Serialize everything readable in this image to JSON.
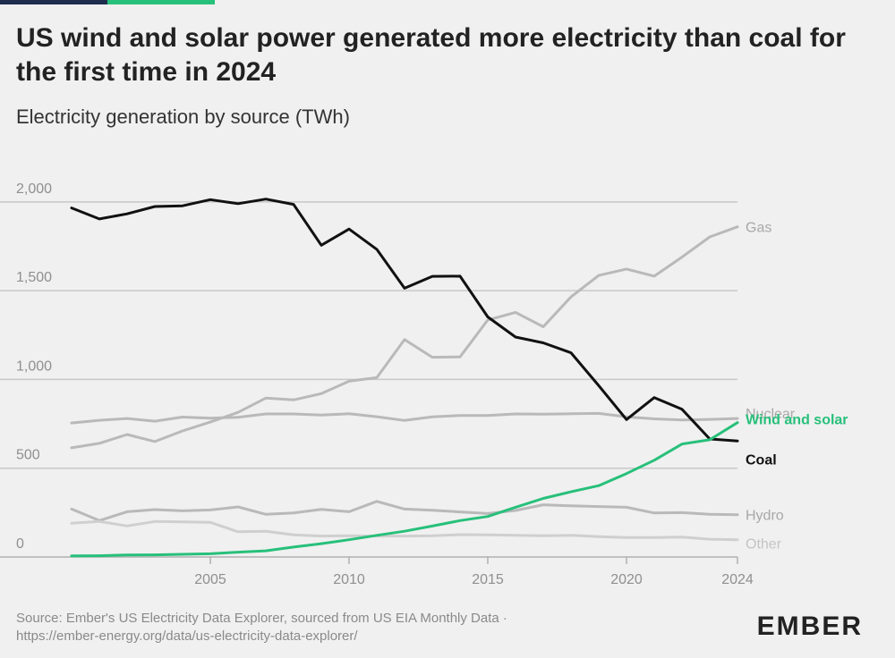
{
  "header": {
    "title": "US wind and solar power generated more electricity than coal for the first time in 2024",
    "subtitle": "Electricity generation by source (TWh)"
  },
  "footer": {
    "source_line1": "Source: Ember's US Electricity Data Explorer, sourced from US EIA Monthly Data ·",
    "source_line2": "https://ember-energy.org/data/us-electricity-data-explorer/",
    "logo": "EMBER"
  },
  "colors": {
    "background": "#f0f0f0",
    "grid": "#c8c8c8",
    "gray_series": "#b9b9b9",
    "other_series": "#cfcfcf",
    "coal": "#111111",
    "wind_solar": "#27c07a",
    "bar_navy": "#1f2d4d",
    "bar_green": "#27c07a"
  },
  "chart_data": {
    "type": "line",
    "title": "US wind and solar power generated more electricity than coal for the first time in 2024",
    "subtitle": "Electricity generation by source (TWh)",
    "x": [
      2000,
      2001,
      2002,
      2003,
      2004,
      2005,
      2006,
      2007,
      2008,
      2009,
      2010,
      2011,
      2012,
      2013,
      2014,
      2015,
      2016,
      2017,
      2018,
      2019,
      2020,
      2021,
      2022,
      2023,
      2024
    ],
    "x_ticks": [
      2005,
      2010,
      2015,
      2020,
      2024
    ],
    "x_tick_labels": [
      "2005",
      "2010",
      "2015",
      "2020",
      "2024"
    ],
    "y_ticks": [
      0,
      500,
      1000,
      1500,
      2000
    ],
    "y_tick_labels": [
      "0",
      "500",
      "1,000",
      "1,500",
      "2,000"
    ],
    "xlim": [
      2000,
      2024
    ],
    "ylim": [
      0,
      2050
    ],
    "grid": true,
    "legend": "direct-labels-right",
    "series": [
      {
        "name": "Gas",
        "color": "#b9b9b9",
        "width": 3,
        "values": [
          615,
          640,
          690,
          650,
          710,
          760,
          815,
          895,
          885,
          920,
          990,
          1010,
          1225,
          1125,
          1127,
          1335,
          1378,
          1297,
          1465,
          1586,
          1622,
          1582,
          1689,
          1803,
          1860
        ]
      },
      {
        "name": "Nuclear",
        "color": "#b9b9b9",
        "width": 3,
        "values": [
          755,
          770,
          780,
          765,
          788,
          782,
          787,
          806,
          806,
          799,
          807,
          790,
          769,
          789,
          797,
          797,
          806,
          805,
          807,
          809,
          789,
          778,
          772,
          775,
          780
        ]
      },
      {
        "name": "Hydro",
        "color": "#b9b9b9",
        "width": 3,
        "values": [
          270,
          205,
          255,
          267,
          260,
          265,
          282,
          240,
          248,
          268,
          255,
          313,
          270,
          263,
          254,
          245,
          262,
          294,
          288,
          284,
          280,
          248,
          250,
          240,
          238
        ]
      },
      {
        "name": "Other",
        "color": "#cfcfcf",
        "width": 3,
        "values": [
          190,
          200,
          175,
          200,
          198,
          195,
          142,
          145,
          125,
          118,
          120,
          118,
          118,
          120,
          126,
          125,
          122,
          120,
          122,
          115,
          110,
          110,
          112,
          100,
          97
        ]
      },
      {
        "name": "Coal",
        "color": "#111111",
        "width": 3,
        "values": [
          1966,
          1904,
          1933,
          1974,
          1978,
          2013,
          1990,
          2016,
          1986,
          1756,
          1847,
          1733,
          1514,
          1581,
          1582,
          1352,
          1239,
          1206,
          1150,
          965,
          774,
          898,
          832,
          665,
          653
        ]
      },
      {
        "name": "Wind and solar",
        "color": "#27c07a",
        "width": 3,
        "values": [
          6,
          7,
          11,
          12,
          15,
          18,
          27,
          35,
          56,
          75,
          97,
          122,
          145,
          174,
          205,
          228,
          280,
          330,
          367,
          402,
          470,
          545,
          636,
          660,
          757
        ]
      }
    ]
  }
}
